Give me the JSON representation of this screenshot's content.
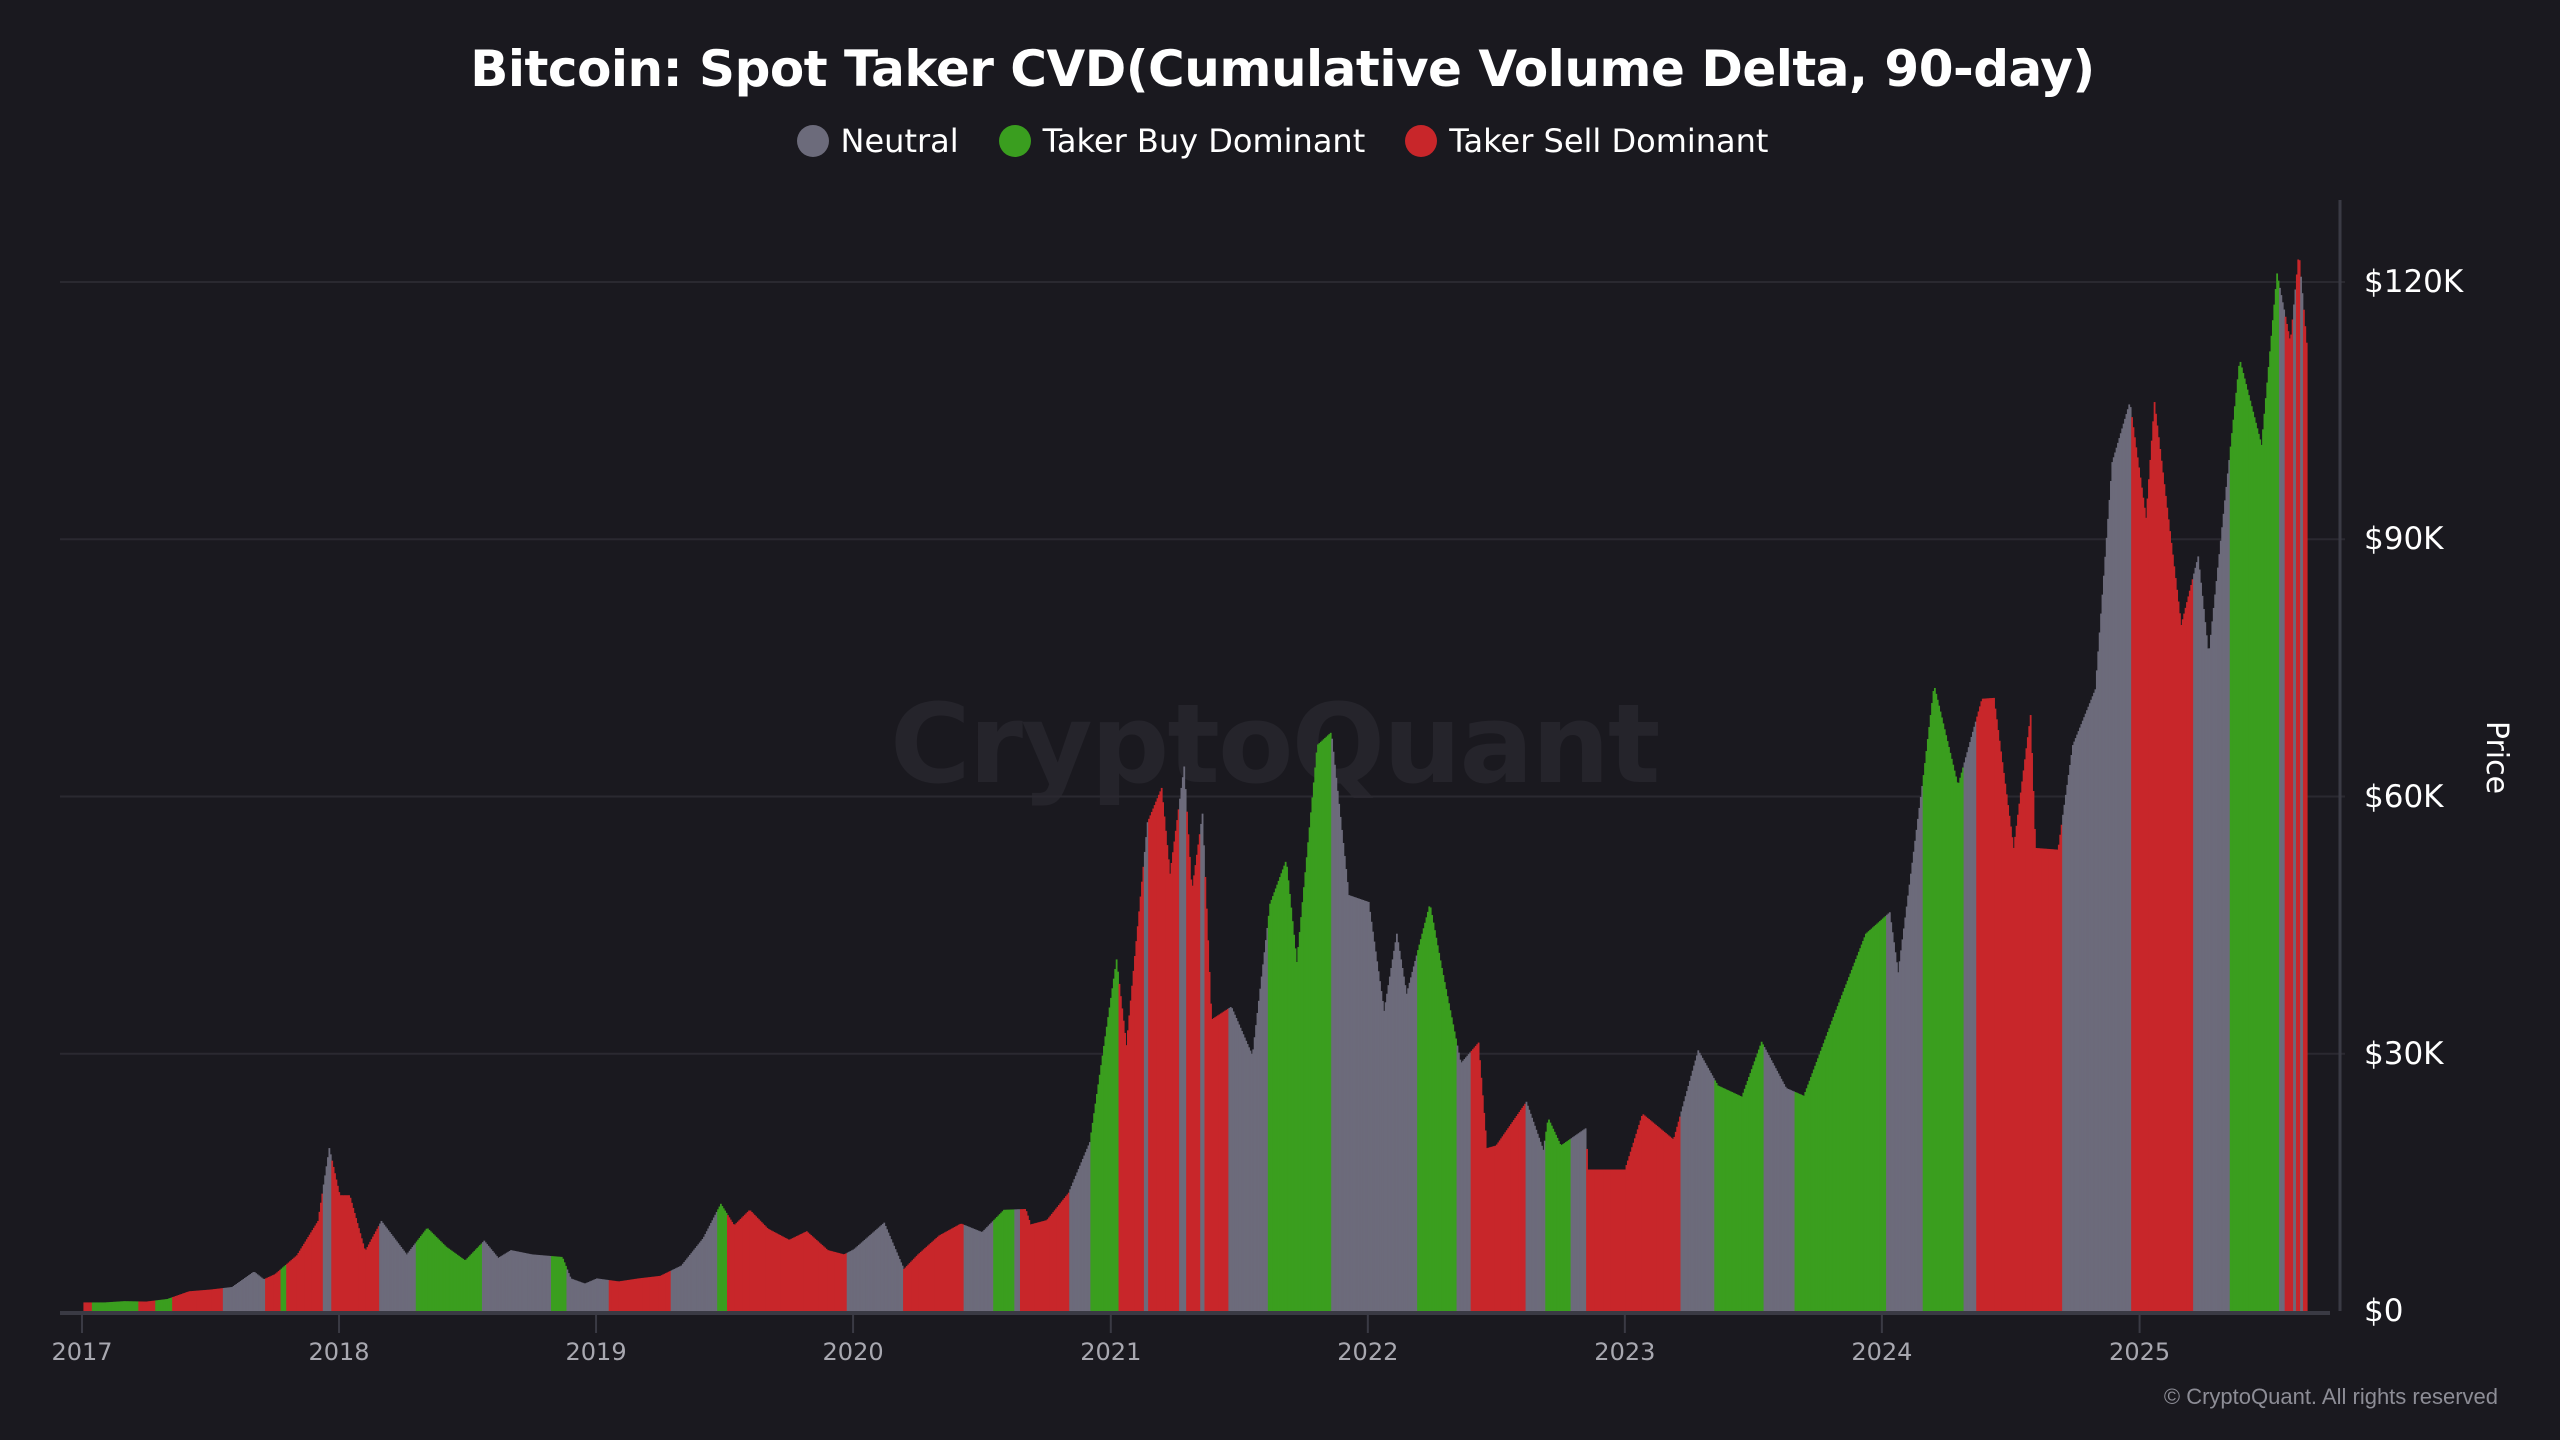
{
  "chart_data": {
    "type": "bar",
    "title": "Bitcoin: Spot Taker CVD(Cumulative Volume Delta, 90-day)",
    "legend": [
      {
        "name": "Neutral",
        "key": "neutral",
        "color": "#6c6b7b"
      },
      {
        "name": "Taker Buy Dominant",
        "key": "buy",
        "color": "#3a9e1f"
      },
      {
        "name": "Taker Sell Dominant",
        "key": "sell",
        "color": "#c8262a"
      }
    ],
    "legend_position": "top-center",
    "ylabel": "Price",
    "ylim": [
      0,
      130000
    ],
    "yticks": [
      {
        "value": 0,
        "label": "$0"
      },
      {
        "value": 30000,
        "label": "$30K"
      },
      {
        "value": 60000,
        "label": "$60K"
      },
      {
        "value": 90000,
        "label": "$90K"
      },
      {
        "value": 120000,
        "label": "$120K"
      }
    ],
    "xlim": [
      "2017-01-01",
      "2025-08-27"
    ],
    "xticks": [
      "2017",
      "2018",
      "2019",
      "2020",
      "2021",
      "2022",
      "2023",
      "2024",
      "2025"
    ],
    "grid": true,
    "price_points": [
      [
        "2017-01-01",
        1000
      ],
      [
        "2017-02-01",
        1000
      ],
      [
        "2017-03-01",
        1150
      ],
      [
        "2017-04-01",
        1100
      ],
      [
        "2017-05-01",
        1400
      ],
      [
        "2017-06-01",
        2300
      ],
      [
        "2017-07-01",
        2500
      ],
      [
        "2017-08-01",
        2800
      ],
      [
        "2017-09-01",
        4600
      ],
      [
        "2017-09-15",
        3700
      ],
      [
        "2017-10-01",
        4300
      ],
      [
        "2017-11-01",
        6500
      ],
      [
        "2017-12-01",
        10500
      ],
      [
        "2017-12-17",
        19000
      ],
      [
        "2018-01-01",
        13500
      ],
      [
        "2018-01-15",
        13500
      ],
      [
        "2018-02-06",
        7000
      ],
      [
        "2018-03-01",
        10500
      ],
      [
        "2018-04-06",
        6600
      ],
      [
        "2018-05-05",
        9700
      ],
      [
        "2018-06-01",
        7500
      ],
      [
        "2018-06-28",
        5900
      ],
      [
        "2018-07-25",
        8200
      ],
      [
        "2018-08-14",
        6200
      ],
      [
        "2018-09-01",
        7100
      ],
      [
        "2018-10-01",
        6600
      ],
      [
        "2018-11-13",
        6300
      ],
      [
        "2018-11-25",
        3800
      ],
      [
        "2018-12-15",
        3200
      ],
      [
        "2019-01-01",
        3800
      ],
      [
        "2019-02-01",
        3450
      ],
      [
        "2019-03-01",
        3800
      ],
      [
        "2019-04-01",
        4100
      ],
      [
        "2019-05-01",
        5300
      ],
      [
        "2019-06-01",
        8500
      ],
      [
        "2019-06-26",
        12500
      ],
      [
        "2019-07-15",
        10000
      ],
      [
        "2019-08-06",
        11800
      ],
      [
        "2019-09-01",
        9600
      ],
      [
        "2019-10-01",
        8300
      ],
      [
        "2019-10-26",
        9300
      ],
      [
        "2019-11-25",
        7100
      ],
      [
        "2019-12-18",
        6600
      ],
      [
        "2020-01-01",
        7200
      ],
      [
        "2020-02-13",
        10300
      ],
      [
        "2020-03-12",
        4900
      ],
      [
        "2020-04-01",
        6600
      ],
      [
        "2020-05-01",
        8800
      ],
      [
        "2020-06-01",
        10200
      ],
      [
        "2020-07-01",
        9200
      ],
      [
        "2020-08-01",
        11800
      ],
      [
        "2020-09-01",
        11900
      ],
      [
        "2020-09-08",
        10100
      ],
      [
        "2020-10-01",
        10600
      ],
      [
        "2020-11-01",
        13800
      ],
      [
        "2020-12-01",
        19700
      ],
      [
        "2021-01-08",
        41000
      ],
      [
        "2021-01-22",
        31000
      ],
      [
        "2021-02-21",
        57000
      ],
      [
        "2021-03-13",
        61000
      ],
      [
        "2021-03-25",
        51000
      ],
      [
        "2021-04-14",
        63500
      ],
      [
        "2021-04-25",
        49000
      ],
      [
        "2021-05-10",
        58000
      ],
      [
        "2021-05-23",
        34000
      ],
      [
        "2021-06-20",
        35500
      ],
      [
        "2021-07-20",
        29800
      ],
      [
        "2021-08-14",
        47500
      ],
      [
        "2021-09-06",
        52600
      ],
      [
        "2021-09-21",
        40700
      ],
      [
        "2021-10-20",
        66000
      ],
      [
        "2021-11-09",
        67500
      ],
      [
        "2021-12-04",
        48500
      ],
      [
        "2022-01-01",
        47700
      ],
      [
        "2022-01-23",
        35000
      ],
      [
        "2022-02-10",
        44000
      ],
      [
        "2022-02-24",
        37000
      ],
      [
        "2022-03-29",
        47500
      ],
      [
        "2022-04-15",
        40000
      ],
      [
        "2022-05-12",
        28900
      ],
      [
        "2022-06-06",
        31300
      ],
      [
        "2022-06-18",
        19000
      ],
      [
        "2022-07-01",
        19300
      ],
      [
        "2022-08-13",
        24400
      ],
      [
        "2022-09-06",
        18800
      ],
      [
        "2022-09-13",
        22500
      ],
      [
        "2022-10-01",
        19300
      ],
      [
        "2022-11-05",
        21300
      ],
      [
        "2022-11-09",
        16500
      ],
      [
        "2022-12-31",
        16500
      ],
      [
        "2023-01-25",
        23000
      ],
      [
        "2023-03-10",
        20000
      ],
      [
        "2023-04-14",
        30400
      ],
      [
        "2023-05-12",
        26300
      ],
      [
        "2023-06-15",
        25000
      ],
      [
        "2023-07-13",
        31400
      ],
      [
        "2023-08-17",
        26000
      ],
      [
        "2023-09-11",
        25100
      ],
      [
        "2023-10-24",
        34500
      ],
      [
        "2023-12-08",
        44000
      ],
      [
        "2024-01-11",
        46500
      ],
      [
        "2024-01-23",
        39500
      ],
      [
        "2024-02-28",
        62500
      ],
      [
        "2024-03-14",
        73000
      ],
      [
        "2024-04-17",
        61300
      ],
      [
        "2024-05-21",
        71400
      ],
      [
        "2024-06-07",
        71500
      ],
      [
        "2024-07-05",
        54000
      ],
      [
        "2024-07-29",
        69500
      ],
      [
        "2024-08-05",
        54000
      ],
      [
        "2024-09-06",
        53800
      ],
      [
        "2024-09-27",
        66000
      ],
      [
        "2024-10-29",
        72500
      ],
      [
        "2024-11-22",
        99000
      ],
      [
        "2024-12-17",
        106000
      ],
      [
        "2025-01-09",
        92500
      ],
      [
        "2025-01-21",
        106000
      ],
      [
        "2025-02-28",
        80000
      ],
      [
        "2025-03-24",
        88000
      ],
      [
        "2025-04-08",
        76500
      ],
      [
        "2025-05-22",
        111000
      ],
      [
        "2025-06-22",
        101000
      ],
      [
        "2025-07-14",
        121000
      ],
      [
        "2025-08-02",
        113000
      ],
      [
        "2025-08-14",
        123500
      ],
      [
        "2025-08-27",
        111000
      ]
    ],
    "regimes": [
      [
        "2017-01-03",
        "sell"
      ],
      [
        "2017-01-15",
        "buy"
      ],
      [
        "2017-03-22",
        "sell"
      ],
      [
        "2017-04-14",
        "buy"
      ],
      [
        "2017-05-08",
        "sell"
      ],
      [
        "2017-07-19",
        "neutral"
      ],
      [
        "2017-09-17",
        "sell"
      ],
      [
        "2017-10-10",
        "buy"
      ],
      [
        "2017-10-17",
        "sell"
      ],
      [
        "2017-12-09",
        "neutral"
      ],
      [
        "2017-12-21",
        "sell"
      ],
      [
        "2018-02-26",
        "neutral"
      ],
      [
        "2018-04-19",
        "buy"
      ],
      [
        "2018-07-22",
        "neutral"
      ],
      [
        "2018-10-29",
        "buy"
      ],
      [
        "2018-11-19",
        "neutral"
      ],
      [
        "2019-01-19",
        "sell"
      ],
      [
        "2019-04-16",
        "neutral"
      ],
      [
        "2019-06-22",
        "buy"
      ],
      [
        "2019-07-06",
        "sell"
      ],
      [
        "2019-12-23",
        "neutral"
      ],
      [
        "2020-03-11",
        "sell"
      ],
      [
        "2020-06-05",
        "neutral"
      ],
      [
        "2020-07-17",
        "buy"
      ],
      [
        "2020-08-16",
        "neutral"
      ],
      [
        "2020-08-25",
        "sell"
      ],
      [
        "2020-11-03",
        "neutral"
      ],
      [
        "2020-12-03",
        "buy"
      ],
      [
        "2021-01-12",
        "sell"
      ],
      [
        "2021-02-16",
        "neutral"
      ],
      [
        "2021-02-23",
        "sell"
      ],
      [
        "2021-04-08",
        "neutral"
      ],
      [
        "2021-04-17",
        "sell"
      ],
      [
        "2021-05-08",
        "neutral"
      ],
      [
        "2021-05-13",
        "sell"
      ],
      [
        "2021-06-17",
        "neutral"
      ],
      [
        "2021-08-11",
        "buy"
      ],
      [
        "2021-11-09",
        "neutral"
      ],
      [
        "2022-03-12",
        "buy"
      ],
      [
        "2022-05-07",
        "neutral"
      ],
      [
        "2022-05-26",
        "sell"
      ],
      [
        "2022-08-13",
        "neutral"
      ],
      [
        "2022-09-09",
        "buy"
      ],
      [
        "2022-10-16",
        "neutral"
      ],
      [
        "2022-11-06",
        "sell"
      ],
      [
        "2023-03-20",
        "neutral"
      ],
      [
        "2023-05-08",
        "buy"
      ],
      [
        "2023-07-16",
        "neutral"
      ],
      [
        "2023-08-29",
        "buy"
      ],
      [
        "2024-01-06",
        "neutral"
      ],
      [
        "2024-02-28",
        "buy"
      ],
      [
        "2024-04-26",
        "neutral"
      ],
      [
        "2024-05-14",
        "sell"
      ],
      [
        "2024-09-13",
        "neutral"
      ],
      [
        "2024-12-19",
        "sell"
      ],
      [
        "2025-03-17",
        "neutral"
      ],
      [
        "2025-05-08",
        "buy"
      ],
      [
        "2025-07-18",
        "neutral"
      ],
      [
        "2025-07-25",
        "sell"
      ],
      [
        "2025-08-06",
        "neutral"
      ],
      [
        "2025-08-10",
        "sell"
      ],
      [
        "2025-08-17",
        "neutral"
      ],
      [
        "2025-08-20",
        "sell"
      ]
    ]
  },
  "watermark": "CryptoQuant",
  "copyright": "© CryptoQuant. All rights reserved"
}
